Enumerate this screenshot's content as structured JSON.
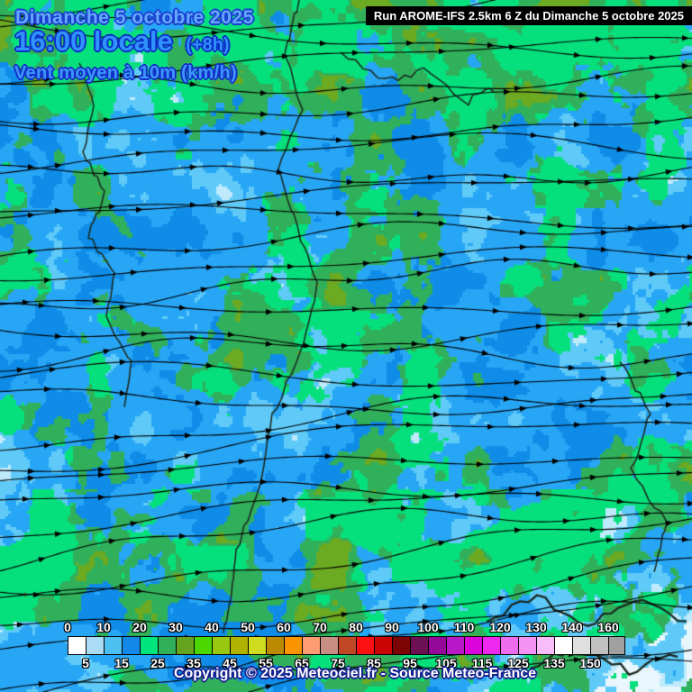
{
  "header": {
    "date": "Dimanche 5 octobre 2025",
    "time": "16:00 locale",
    "offset": "(+8h)",
    "variable": "Vent moyen à 10m (km/h)",
    "run": "Run AROME-IFS 2.5km 6 Z du Dimanche 5 octobre 2025"
  },
  "footer": {
    "copyright": "Copyright © 2025 Meteociel.fr - Source Meteo-France"
  },
  "chart_data": {
    "type": "heatmap",
    "title": "Vent moyen à 10m (km/h)",
    "unit": "km/h",
    "legend": {
      "position": "bottom",
      "top_labels": [
        0,
        10,
        20,
        30,
        40,
        50,
        60,
        70,
        80,
        90,
        100,
        110,
        120,
        130,
        140,
        160
      ],
      "bottom_labels": [
        5,
        15,
        25,
        35,
        45,
        55,
        65,
        75,
        85,
        95,
        105,
        115,
        125,
        135,
        150
      ],
      "swatches": [
        {
          "from": 0,
          "to": 5,
          "color": "#ffffff"
        },
        {
          "from": 5,
          "to": 10,
          "color": "#aadcf6"
        },
        {
          "from": 10,
          "to": 15,
          "color": "#4cc0f0"
        },
        {
          "from": 15,
          "to": 20,
          "color": "#1488e8"
        },
        {
          "from": 20,
          "to": 25,
          "color": "#00e47e"
        },
        {
          "from": 25,
          "to": 30,
          "color": "#30b058"
        },
        {
          "from": 30,
          "to": 35,
          "color": "#64a41e"
        },
        {
          "from": 35,
          "to": 40,
          "color": "#4ad800"
        },
        {
          "from": 40,
          "to": 45,
          "color": "#98c810"
        },
        {
          "from": 45,
          "to": 50,
          "color": "#b2b200"
        },
        {
          "from": 50,
          "to": 55,
          "color": "#d0dc20"
        },
        {
          "from": 55,
          "to": 60,
          "color": "#bc8a00"
        },
        {
          "from": 60,
          "to": 65,
          "color": "#fc9400"
        },
        {
          "from": 65,
          "to": 70,
          "color": "#fc9c70"
        },
        {
          "from": 70,
          "to": 75,
          "color": "#c88e84"
        },
        {
          "from": 75,
          "to": 80,
          "color": "#c04824"
        },
        {
          "from": 80,
          "to": 85,
          "color": "#fc1010"
        },
        {
          "from": 85,
          "to": 90,
          "color": "#cc0404"
        },
        {
          "from": 90,
          "to": 95,
          "color": "#7c0404"
        },
        {
          "from": 95,
          "to": 100,
          "color": "#6c1054"
        },
        {
          "from": 100,
          "to": 105,
          "color": "#96089a"
        },
        {
          "from": 105,
          "to": 110,
          "color": "#b818c8"
        },
        {
          "from": 110,
          "to": 115,
          "color": "#dc04dc"
        },
        {
          "from": 115,
          "to": 120,
          "color": "#ee28ee"
        },
        {
          "from": 120,
          "to": 125,
          "color": "#ee6cee"
        },
        {
          "from": 125,
          "to": 130,
          "color": "#f492f4"
        },
        {
          "from": 130,
          "to": 135,
          "color": "#f8bcf8"
        },
        {
          "from": 135,
          "to": 140,
          "color": "#ffffff"
        },
        {
          "from": 140,
          "to": 150,
          "color": "#e0e0e0"
        },
        {
          "from": 150,
          "to": 160,
          "color": "#c0c0c0"
        },
        {
          "from": 160,
          "to": null,
          "color": "#a0a0a0"
        }
      ]
    }
  },
  "map": {
    "streamline_color": "#000000",
    "border_color": "#1c2c22",
    "field_palette": {
      "pale_white": "#e9f7fd",
      "pale_blue": "#bfeafc",
      "light_blue": "#5fcaf8",
      "blue": "#28a6f6",
      "deep_blue": "#0e8ce8",
      "spring_green": "#06e07c",
      "sea_green": "#30b05a",
      "olive_green": "#6caa22"
    }
  }
}
